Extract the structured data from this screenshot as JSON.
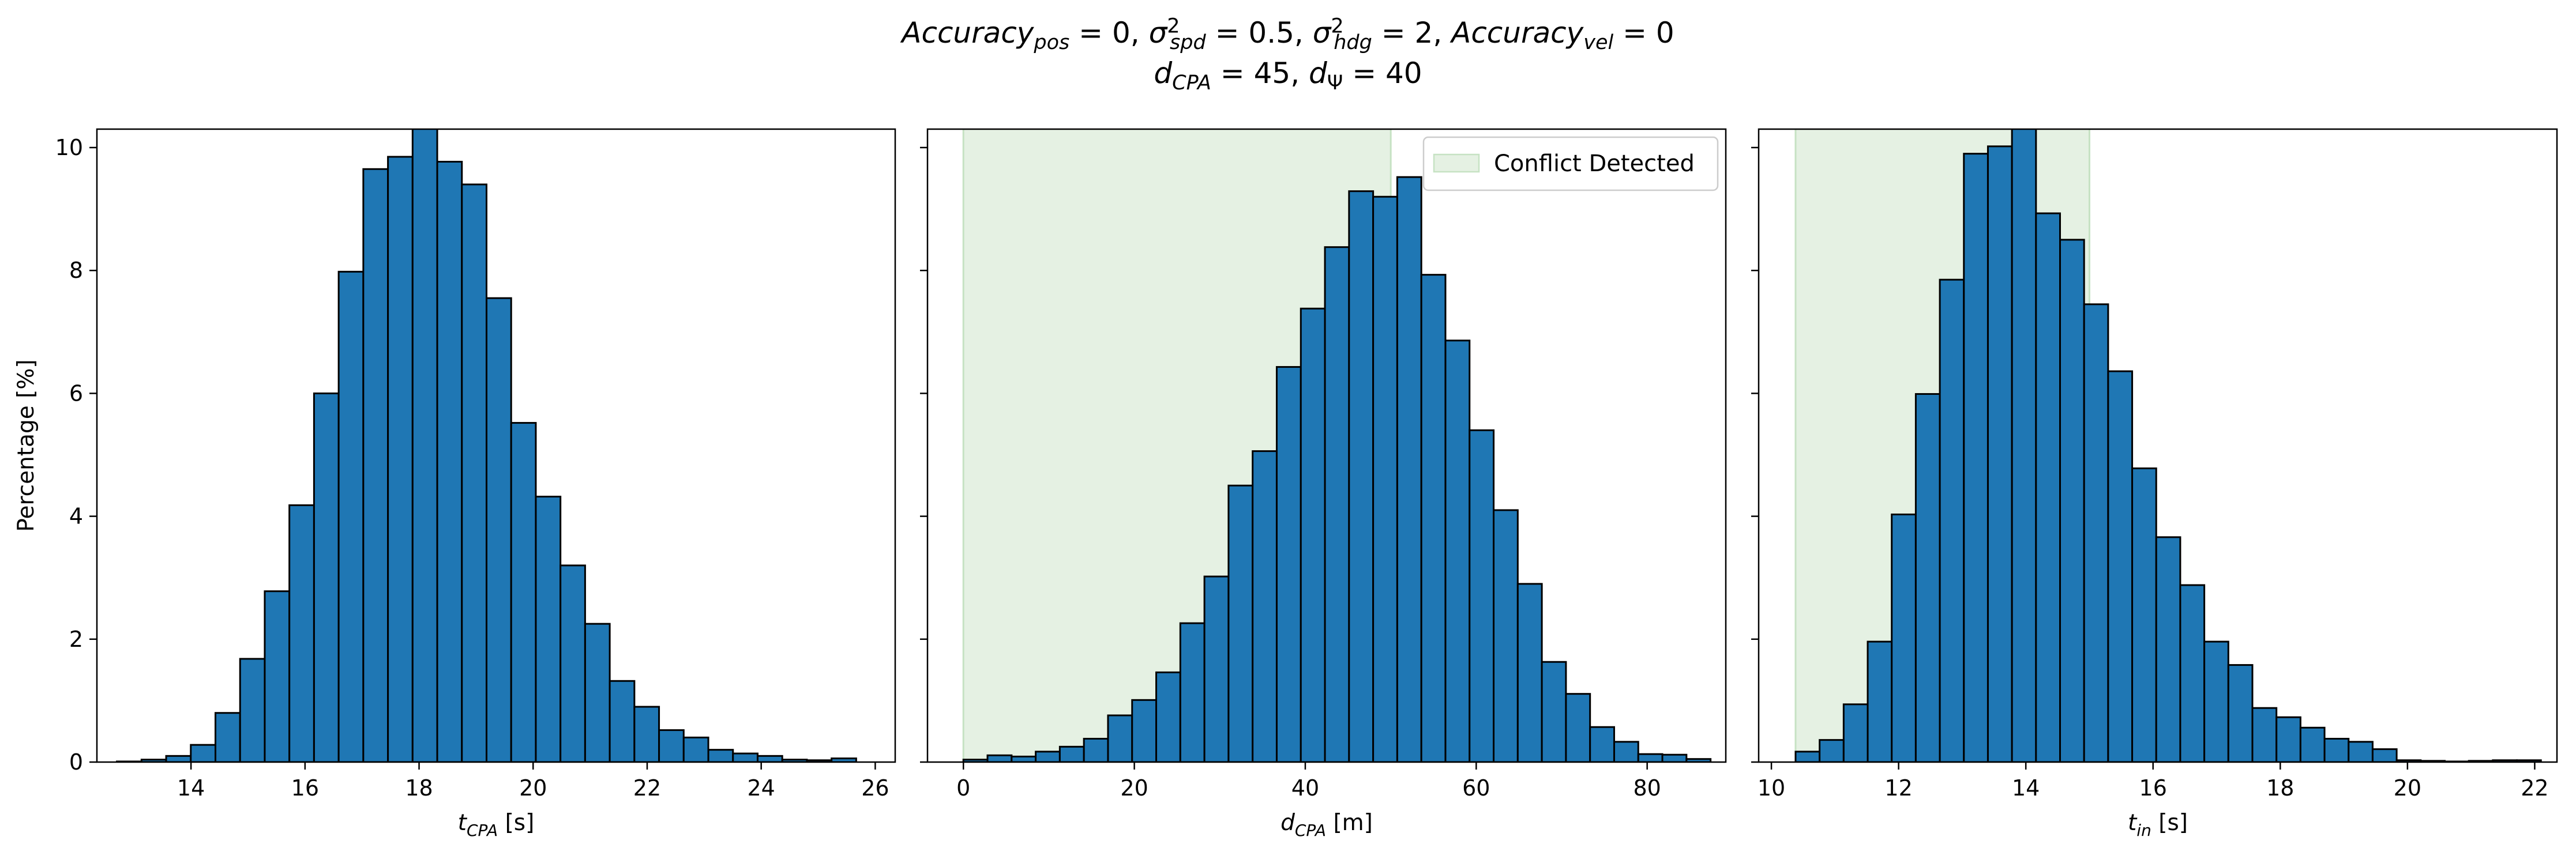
{
  "figure": {
    "title_line1": {
      "acc_pos_name": "Accuracy",
      "acc_pos_sub": "pos",
      "acc_pos_val": " = 0, ",
      "sigma": "σ",
      "spd_sup": "2",
      "spd_sub": "spd",
      "spd_val": " = 0.5, ",
      "hdg_sup": "2",
      "hdg_sub": "hdg",
      "hdg_val": " = 2, ",
      "acc_vel_name": "Accuracy",
      "acc_vel_sub": "vel",
      "acc_vel_val": " = 0"
    },
    "title_line2": {
      "d": "d",
      "cpa_sub": "CPA",
      "cpa_val": " = 45, ",
      "psi_sub": "Ψ",
      "psi_val": " = 40"
    },
    "colors": {
      "bar": "#1f77b4",
      "bar_edge": "#000000",
      "region": "#e5f1e3",
      "region_edge": "#c6e2c3",
      "axis": "#000000"
    }
  },
  "chart_data": [
    {
      "type": "bar",
      "panel": "left",
      "xlabel": {
        "symbol": "t",
        "sub": "CPA",
        "unit": " [s]"
      },
      "ylabel": "Percentage [%]",
      "xlim": [
        12.35,
        26.35
      ],
      "ylim": [
        0,
        10.3
      ],
      "xticks": [
        14,
        16,
        18,
        20,
        22,
        24,
        26
      ],
      "yticks": [
        0,
        2,
        4,
        6,
        8,
        10
      ],
      "bin_start": 12.7,
      "bin_width": 0.4322,
      "values": [
        0.01,
        0.04,
        0.1,
        0.28,
        0.8,
        1.68,
        2.78,
        4.18,
        6.0,
        7.98,
        9.65,
        9.85,
        10.35,
        9.77,
        9.4,
        7.55,
        5.52,
        4.32,
        3.2,
        2.25,
        1.32,
        0.9,
        0.52,
        0.4,
        0.2,
        0.14,
        0.1,
        0.04,
        0.03,
        0.06
      ]
    },
    {
      "type": "bar",
      "panel": "middle",
      "xlabel": {
        "symbol": "d",
        "sub": "CPA",
        "unit": " [m]"
      },
      "ylabel": "",
      "xlim": [
        -4.2,
        89.2
      ],
      "ylim": [
        0,
        10.3
      ],
      "xticks": [
        0,
        20,
        40,
        60,
        80
      ],
      "yticks": [
        0,
        2,
        4,
        6,
        8,
        10
      ],
      "bin_start": 0.0,
      "bin_width": 2.82,
      "values": [
        0.04,
        0.11,
        0.09,
        0.17,
        0.25,
        0.38,
        0.76,
        1.01,
        1.46,
        2.26,
        3.02,
        4.5,
        5.06,
        6.43,
        7.38,
        8.38,
        9.29,
        9.2,
        9.52,
        7.93,
        6.86,
        5.4,
        4.1,
        2.9,
        1.63,
        1.11,
        0.57,
        0.33,
        0.13,
        0.12,
        0.05
      ],
      "region": {
        "x0": 0,
        "x1": 50
      },
      "legend": {
        "label": "Conflict Detected",
        "position": "top-right"
      }
    },
    {
      "type": "bar",
      "panel": "right",
      "xlabel": {
        "symbol": "t",
        "sub": "in",
        "unit": " [s]"
      },
      "ylabel": "",
      "xlim": [
        9.8,
        22.35
      ],
      "ylim": [
        0,
        10.3
      ],
      "xticks": [
        10,
        12,
        14,
        16,
        18,
        20,
        22
      ],
      "yticks": [
        0,
        2,
        4,
        6,
        8,
        10
      ],
      "bin_start": 10.38,
      "bin_width": 0.378,
      "values": [
        0.17,
        0.36,
        0.94,
        1.96,
        4.03,
        5.99,
        7.85,
        9.9,
        10.02,
        10.4,
        8.93,
        8.5,
        7.45,
        6.36,
        4.78,
        3.66,
        2.88,
        1.96,
        1.58,
        0.88,
        0.73,
        0.56,
        0.38,
        0.33,
        0.21,
        0.03,
        0.02,
        0.01,
        0.02,
        0.03,
        0.03
      ],
      "region": {
        "x0": 10.38,
        "x1": 15.0
      }
    }
  ]
}
